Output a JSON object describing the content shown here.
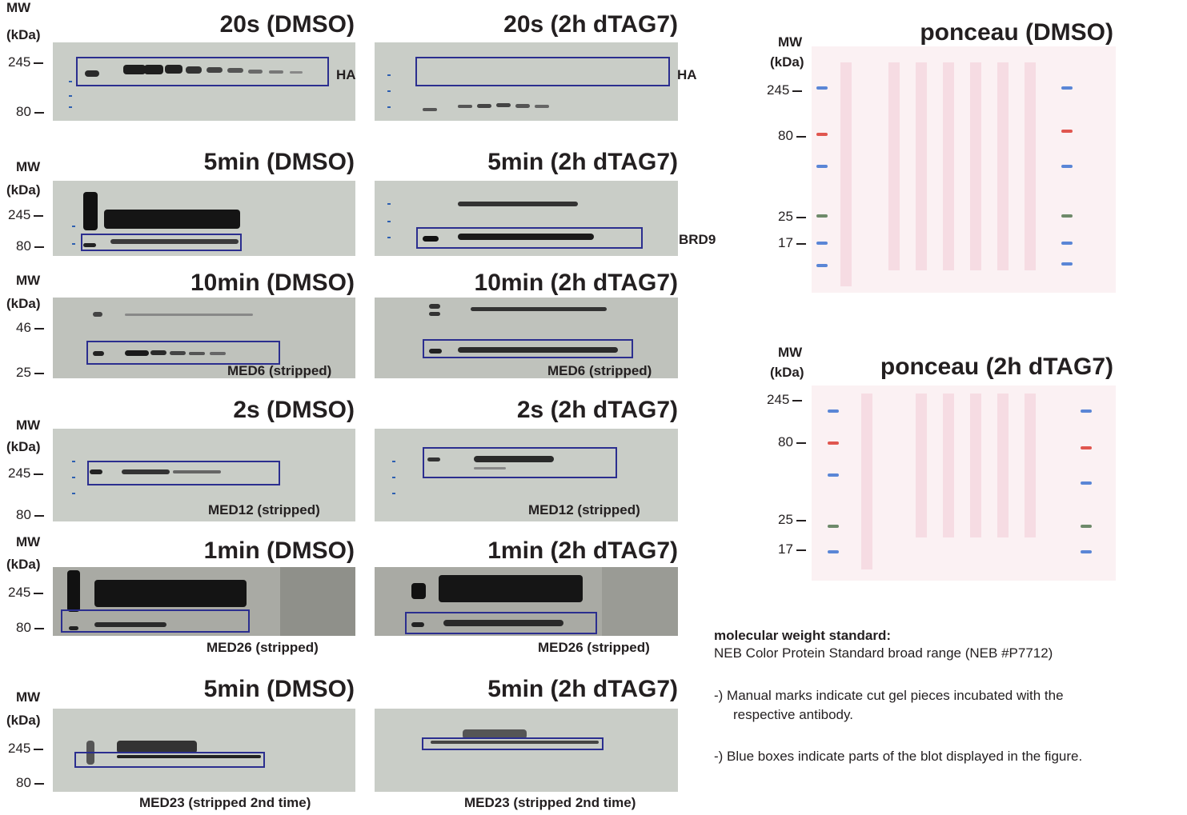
{
  "mw_label_line1": "MW",
  "mw_label_line2": "(kDa)",
  "rows": [
    {
      "left_title": "20s (DMSO)",
      "right_title": "20s (2h dTAG7)",
      "ticks": [
        "245",
        "80"
      ],
      "left_label": "HA",
      "right_label": "HA"
    },
    {
      "left_title": "5min (DMSO)",
      "right_title": "5min (2h dTAG7)",
      "ticks": [
        "245",
        "80"
      ],
      "left_label": "",
      "right_label": "BRD9"
    },
    {
      "left_title": "10min (DMSO)",
      "right_title": "10min (2h dTAG7)",
      "ticks": [
        "46",
        "25"
      ],
      "left_label": "MED6 (stripped)",
      "right_label": "MED6 (stripped)"
    },
    {
      "left_title": "2s (DMSO)",
      "right_title": "2s (2h dTAG7)",
      "ticks": [
        "245",
        "80"
      ],
      "left_label": "MED12 (stripped)",
      "right_label": "MED12 (stripped)"
    },
    {
      "left_title": "1min (DMSO)",
      "right_title": "1min (2h dTAG7)",
      "ticks": [
        "245",
        "80"
      ],
      "left_label": "MED26 (stripped)",
      "right_label": "MED26 (stripped)"
    },
    {
      "left_title": "5min (DMSO)",
      "right_title": "5min (2h dTAG7)",
      "ticks": [
        "245",
        "80"
      ],
      "left_label": "MED23 (stripped 2nd time)",
      "right_label": "MED23 (stripped 2nd time)"
    }
  ],
  "ponceau": [
    {
      "title": "ponceau (DMSO)",
      "ticks": [
        "245",
        "80",
        "25",
        "17"
      ]
    },
    {
      "title": "ponceau (2h dTAG7)",
      "ticks": [
        "245",
        "80",
        "25",
        "17"
      ]
    }
  ],
  "notes": {
    "heading": "molecular weight standard:",
    "standard": "NEB Color Protein Standard broad range (NEB #P7712)",
    "note1_line1": "-) Manual marks indicate cut gel pieces incubated with the",
    "note1_line2": "respective antibody.",
    "note2": "-) Blue boxes indicate parts of the blot displayed in the figure."
  },
  "colors": {
    "box": "#2b2e8f",
    "ladder_blue": "#2d5fb0",
    "ponceau_bg": "#fbf1f3"
  }
}
